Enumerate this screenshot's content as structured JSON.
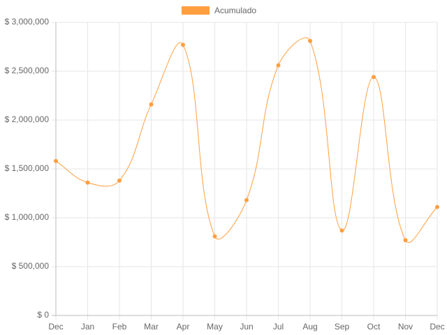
{
  "chart_data": {
    "type": "line",
    "categories": [
      "Dec",
      "Jan",
      "Feb",
      "Mar",
      "Apr",
      "May",
      "Jun",
      "Jul",
      "Aug",
      "Sep",
      "Oct",
      "Nov",
      "Dec"
    ],
    "series": [
      {
        "name": "Acumulado",
        "color": "#ff9f40",
        "values": [
          1580000,
          1360000,
          1380000,
          2160000,
          2770000,
          810000,
          1180000,
          2560000,
          2810000,
          870000,
          2440000,
          770000,
          1110000
        ]
      }
    ],
    "ylim": [
      0,
      3000000
    ],
    "yticks": [
      {
        "value": 0,
        "label": "$ 0"
      },
      {
        "value": 500000,
        "label": "$ 500,000"
      },
      {
        "value": 1000000,
        "label": "$ 1,000,000"
      },
      {
        "value": 1500000,
        "label": "$ 1,500,000"
      },
      {
        "value": 2000000,
        "label": "$ 2,000,000"
      },
      {
        "value": 2500000,
        "label": "$ 2,500,000"
      },
      {
        "value": 3000000,
        "label": "$ 3,000,000"
      }
    ],
    "grid": true,
    "legend": "top"
  }
}
